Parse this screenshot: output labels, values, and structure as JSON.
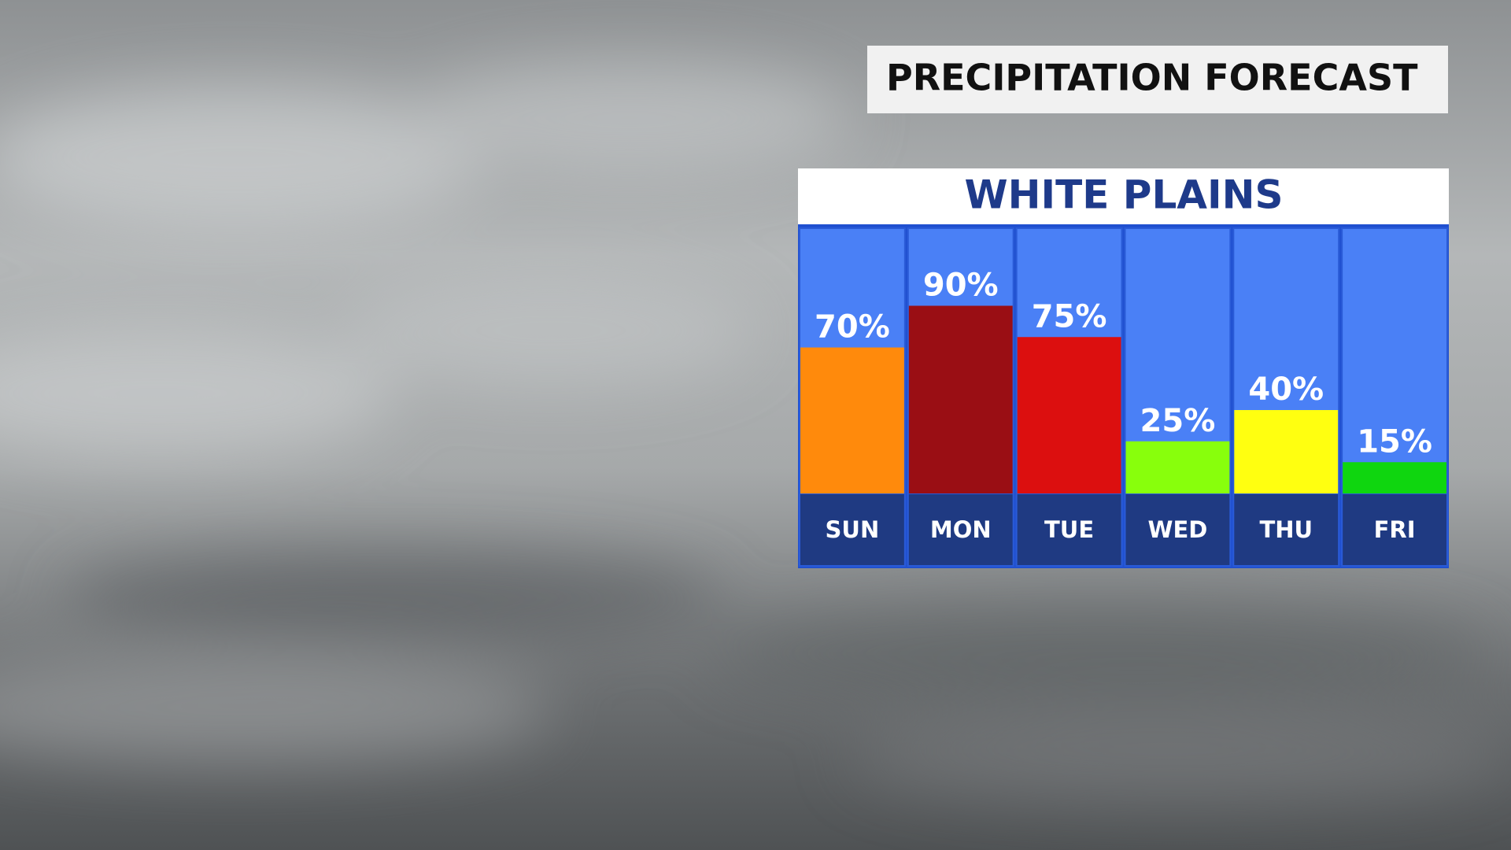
{
  "chart_data": {
    "type": "bar",
    "title": "PRECIPITATION FORECAST",
    "subtitle": "WHITE PLAINS",
    "categories": [
      "SUN",
      "MON",
      "TUE",
      "WED",
      "THU",
      "FRI"
    ],
    "values": [
      70,
      90,
      75,
      25,
      40,
      15
    ],
    "value_labels": [
      "70%",
      "90%",
      "75%",
      "25%",
      "40%",
      "15%"
    ],
    "colors": [
      "#ff8a0c",
      "#9a0e14",
      "#dc0f0f",
      "#88ff0c",
      "#ffff10",
      "#0fd60f"
    ]
  }
}
